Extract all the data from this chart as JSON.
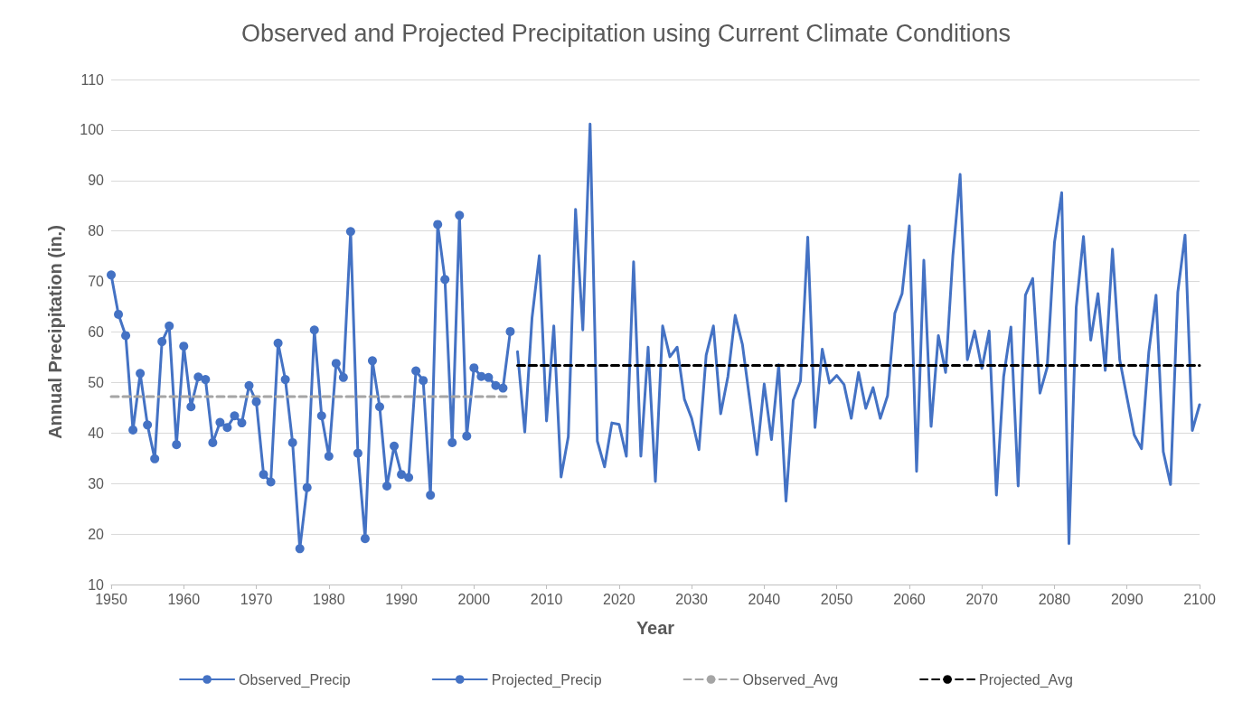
{
  "chart_data": {
    "type": "line",
    "title": "Observed and Projected Precipitation using Current Climate Conditions",
    "xlabel": "Year",
    "ylabel": "Annual Precipitation (in.)",
    "xlim": [
      1950,
      2100
    ],
    "xticks": [
      1950,
      1960,
      1970,
      1980,
      1990,
      2000,
      2010,
      2020,
      2030,
      2040,
      2050,
      2060,
      2070,
      2080,
      2090,
      2100
    ],
    "ylim": [
      10,
      110
    ],
    "yticks": [
      10,
      20,
      30,
      40,
      50,
      60,
      70,
      80,
      90,
      100,
      110
    ],
    "grid": "y",
    "legend": "bottom",
    "series": [
      {
        "name": "Observed_Precip",
        "color": "#4472c4",
        "marker": "circle",
        "x": [
          1950,
          1951,
          1952,
          1953,
          1954,
          1955,
          1956,
          1957,
          1958,
          1959,
          1960,
          1961,
          1962,
          1963,
          1964,
          1965,
          1966,
          1967,
          1968,
          1969,
          1970,
          1971,
          1972,
          1973,
          1974,
          1975,
          1976,
          1977,
          1978,
          1979,
          1980,
          1981,
          1982,
          1983,
          1984,
          1985,
          1986,
          1987,
          1988,
          1989,
          1990,
          1991,
          1992,
          1993,
          1994,
          1995,
          1996,
          1997,
          1998,
          1999,
          2000,
          2001,
          2002,
          2003,
          2004,
          2005
        ],
        "values": [
          71.3,
          63.5,
          59.3,
          40.6,
          51.8,
          41.6,
          34.9,
          58.1,
          61.2,
          37.7,
          57.2,
          45.2,
          51.1,
          50.6,
          38.1,
          42.1,
          41.1,
          43.4,
          42.0,
          49.4,
          46.2,
          31.8,
          30.3,
          57.8,
          50.6,
          38.1,
          17.1,
          29.2,
          60.4,
          43.4,
          35.4,
          53.8,
          51.0,
          79.9,
          36.0,
          19.1,
          54.3,
          45.2,
          29.5,
          37.4,
          31.8,
          31.2,
          52.3,
          50.4,
          27.7,
          81.3,
          70.4,
          38.1,
          83.1,
          39.4,
          52.9,
          51.2,
          51.0,
          49.4,
          48.9,
          60.1
        ]
      },
      {
        "name": "Projected_Precip",
        "color": "#4472c4",
        "x": [
          2006,
          2007,
          2008,
          2009,
          2010,
          2011,
          2012,
          2013,
          2014,
          2015,
          2016,
          2017,
          2018,
          2019,
          2020,
          2021,
          2022,
          2023,
          2024,
          2025,
          2026,
          2027,
          2028,
          2029,
          2030,
          2031,
          2032,
          2033,
          2034,
          2035,
          2036,
          2037,
          2038,
          2039,
          2040,
          2041,
          2042,
          2043,
          2044,
          2045,
          2046,
          2047,
          2048,
          2049,
          2050,
          2051,
          2052,
          2053,
          2054,
          2055,
          2056,
          2057,
          2058,
          2059,
          2060,
          2061,
          2062,
          2063,
          2064,
          2065,
          2066,
          2067,
          2068,
          2069,
          2070,
          2071,
          2072,
          2073,
          2074,
          2075,
          2076,
          2077,
          2078,
          2079,
          2080,
          2081,
          2082,
          2083,
          2084,
          2085,
          2086,
          2087,
          2088,
          2089,
          2090,
          2091,
          2092,
          2093,
          2094,
          2095,
          2096,
          2097,
          2098,
          2099,
          2100
        ],
        "values": [
          56.1,
          40.2,
          62.8,
          75.1,
          42.4,
          61.2,
          31.3,
          39.3,
          84.3,
          60.4,
          101.2,
          38.4,
          33.3,
          42.0,
          41.7,
          35.4,
          73.9,
          35.4,
          57.0,
          30.4,
          61.2,
          55.1,
          57.0,
          46.7,
          42.9,
          36.7,
          55.4,
          61.2,
          43.8,
          51.2,
          63.3,
          57.5,
          46.6,
          35.7,
          49.7,
          38.7,
          53.5,
          26.5,
          46.5,
          50.3,
          78.8,
          41.1,
          56.6,
          49.9,
          51.4,
          49.6,
          42.9,
          52.0,
          44.9,
          49.0,
          42.9,
          47.4,
          63.7,
          67.6,
          81.0,
          32.4,
          74.2,
          41.3,
          59.3,
          52.0,
          75.1,
          91.2,
          54.5,
          60.2,
          52.8,
          60.2,
          27.7,
          51.2,
          61.0,
          29.5,
          67.3,
          70.6,
          47.9,
          53.0,
          77.7,
          87.6,
          18.1,
          64.9,
          78.9,
          58.4,
          67.6,
          52.4,
          76.4,
          54.5,
          47.0,
          39.6,
          36.9,
          56.0,
          67.3,
          36.3,
          29.8,
          67.9,
          79.2,
          40.5,
          45.6
        ]
      },
      {
        "name": "Observed_Avg",
        "color": "#a5a5a5",
        "line_style": "dashed",
        "x": [
          1950,
          2005
        ],
        "values": [
          47.2,
          47.2
        ]
      },
      {
        "name": "Projected_Avg",
        "color": "#000000",
        "line_style": "dashed",
        "x": [
          2006,
          2100
        ],
        "values": [
          53.4,
          53.4
        ]
      }
    ]
  }
}
